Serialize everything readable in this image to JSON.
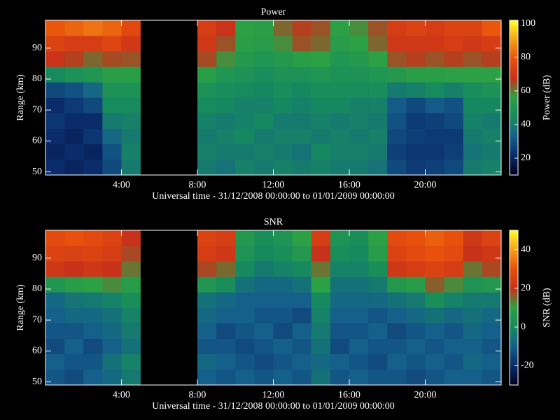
{
  "chart_data": [
    {
      "type": "heatmap",
      "title": "Power",
      "xlabel": "Universal time - 31/12/2008 00:00:00 to 01/01/2009 00:00:00",
      "ylabel": "Range (km)",
      "colorbar_label": "Power (dB)",
      "x": [
        0,
        1,
        2,
        3,
        4,
        5,
        6,
        7,
        8,
        9,
        10,
        11,
        12,
        13,
        14,
        15,
        16,
        17,
        18,
        19,
        20,
        21,
        22,
        23,
        24
      ],
      "y": [
        49,
        54,
        59,
        64,
        69,
        74,
        79,
        84,
        89,
        94,
        99
      ],
      "xlim": [
        0,
        24
      ],
      "ylim": [
        49,
        99
      ],
      "clim": [
        10,
        102
      ],
      "xticks": [
        {
          "value": 4,
          "label": "4:00"
        },
        {
          "value": 8,
          "label": "8:00"
        },
        {
          "value": 12,
          "label": "12:00"
        },
        {
          "value": 16,
          "label": "16:00"
        },
        {
          "value": 20,
          "label": "20:00"
        }
      ],
      "yticks": [
        50,
        60,
        70,
        80,
        90
      ],
      "cticks": [
        20,
        40,
        60,
        80,
        100
      ],
      "colormap": [
        "#00001e",
        "#0a2a6a",
        "#15608a",
        "#168a5e",
        "#2ca044",
        "#c8321a",
        "#e8500c",
        "#f4a01c",
        "#ffff28"
      ],
      "values": [
        [
          22,
          20,
          22,
          24,
          22,
          28,
          45,
          68,
          74,
          80
        ],
        [
          20,
          22,
          20,
          22,
          25,
          30,
          48,
          66,
          72,
          82
        ],
        [
          22,
          20,
          24,
          22,
          28,
          35,
          50,
          62,
          72,
          84
        ],
        [
          28,
          30,
          35,
          40,
          45,
          48,
          55,
          65,
          75,
          82
        ],
        [
          40,
          42,
          40,
          42,
          45,
          48,
          55,
          64,
          70,
          76
        ],
        [
          null,
          null,
          null,
          null,
          null,
          null,
          null,
          null,
          null,
          null
        ],
        [
          null,
          null,
          null,
          null,
          null,
          null,
          null,
          null,
          null,
          null
        ],
        [
          null,
          null,
          null,
          null,
          null,
          null,
          null,
          null,
          null,
          null
        ],
        [
          40,
          42,
          40,
          42,
          45,
          48,
          55,
          65,
          70,
          72
        ],
        [
          38,
          40,
          42,
          40,
          44,
          46,
          50,
          58,
          64,
          68
        ],
        [
          42,
          40,
          44,
          42,
          42,
          45,
          48,
          52,
          55,
          56
        ],
        [
          40,
          42,
          40,
          44,
          42,
          44,
          46,
          50,
          54,
          55
        ],
        [
          42,
          40,
          42,
          40,
          44,
          46,
          48,
          52,
          58,
          62
        ],
        [
          40,
          38,
          42,
          40,
          42,
          44,
          48,
          55,
          64,
          66
        ],
        [
          42,
          44,
          40,
          42,
          44,
          46,
          50,
          56,
          62,
          64
        ],
        [
          40,
          42,
          42,
          40,
          44,
          46,
          48,
          50,
          54,
          56
        ],
        [
          40,
          42,
          40,
          42,
          42,
          46,
          48,
          52,
          56,
          58
        ],
        [
          38,
          40,
          42,
          40,
          42,
          46,
          50,
          56,
          62,
          64
        ],
        [
          28,
          26,
          28,
          30,
          32,
          40,
          52,
          64,
          70,
          72
        ],
        [
          25,
          24,
          26,
          25,
          28,
          42,
          55,
          66,
          70,
          74
        ],
        [
          26,
          24,
          25,
          26,
          32,
          45,
          55,
          64,
          70,
          72
        ],
        [
          28,
          26,
          25,
          28,
          30,
          42,
          56,
          66,
          72,
          74
        ],
        [
          40,
          38,
          40,
          42,
          44,
          46,
          56,
          64,
          70,
          74
        ],
        [
          42,
          40,
          42,
          40,
          44,
          48,
          56,
          66,
          72,
          80
        ]
      ]
    },
    {
      "type": "heatmap",
      "title": "SNR",
      "xlabel": "Universal time - 31/12/2008 00:00:00 to 01/01/2009 00:00:00",
      "ylabel": "Range (km)",
      "colorbar_label": "SNR (dB)",
      "x": [
        0,
        1,
        2,
        3,
        4,
        5,
        6,
        7,
        8,
        9,
        10,
        11,
        12,
        13,
        14,
        15,
        16,
        17,
        18,
        19,
        20,
        21,
        22,
        23,
        24
      ],
      "y": [
        49,
        54,
        59,
        64,
        69,
        74,
        79,
        84,
        89,
        94,
        99
      ],
      "xlim": [
        0,
        24
      ],
      "ylim": [
        49,
        99
      ],
      "clim": [
        -30,
        50
      ],
      "xticks": [
        {
          "value": 4,
          "label": "4:00"
        },
        {
          "value": 8,
          "label": "8:00"
        },
        {
          "value": 12,
          "label": "12:00"
        },
        {
          "value": 16,
          "label": "16:00"
        },
        {
          "value": 20,
          "label": "20:00"
        }
      ],
      "yticks": [
        50,
        60,
        70,
        80,
        90
      ],
      "cticks": [
        -20,
        0,
        20,
        40
      ],
      "colormap": [
        "#00001e",
        "#0a2a6a",
        "#15608a",
        "#168a5e",
        "#2ca044",
        "#c8321a",
        "#e8500c",
        "#f4a01c",
        "#ffff28"
      ],
      "values": [
        [
          -12,
          -10,
          -14,
          -12,
          -10,
          -8,
          5,
          22,
          26,
          28
        ],
        [
          -14,
          -12,
          -10,
          -12,
          -8,
          -5,
          8,
          20,
          25,
          30
        ],
        [
          -10,
          -12,
          -14,
          -10,
          -8,
          -4,
          10,
          22,
          26,
          28
        ],
        [
          -8,
          -6,
          -10,
          -8,
          -6,
          -2,
          12,
          20,
          24,
          26
        ],
        [
          -4,
          -2,
          -6,
          -4,
          -2,
          2,
          8,
          14,
          18,
          20
        ],
        [
          null,
          null,
          null,
          null,
          null,
          null,
          null,
          null,
          null,
          null
        ],
        [
          null,
          null,
          null,
          null,
          null,
          null,
          null,
          null,
          null,
          null
        ],
        [
          null,
          null,
          null,
          null,
          null,
          null,
          null,
          null,
          null,
          null
        ],
        [
          -10,
          -8,
          -12,
          -10,
          -8,
          -6,
          5,
          18,
          24,
          26
        ],
        [
          -12,
          -10,
          -12,
          -14,
          -10,
          -8,
          2,
          15,
          22,
          24
        ],
        [
          -10,
          -12,
          -14,
          -12,
          -10,
          -10,
          -6,
          0,
          4,
          6
        ],
        [
          -12,
          -14,
          -12,
          -10,
          -12,
          -10,
          -8,
          -4,
          0,
          2
        ],
        [
          -10,
          -12,
          -10,
          -14,
          -12,
          -10,
          -8,
          -2,
          2,
          4
        ],
        [
          -12,
          -10,
          -12,
          -10,
          -14,
          -10,
          -6,
          0,
          6,
          10
        ],
        [
          -6,
          -8,
          -6,
          -4,
          -2,
          0,
          10,
          14,
          20,
          24
        ],
        [
          -12,
          -10,
          -14,
          -12,
          -10,
          -8,
          -6,
          -2,
          2,
          4
        ],
        [
          -10,
          -12,
          -10,
          -12,
          -10,
          -8,
          -6,
          -2,
          0,
          2
        ],
        [
          -12,
          -14,
          -12,
          -10,
          -12,
          -8,
          -4,
          2,
          8,
          10
        ],
        [
          -12,
          -10,
          -12,
          -14,
          -10,
          -6,
          6,
          22,
          26,
          28
        ],
        [
          -14,
          -12,
          -10,
          -12,
          -8,
          -4,
          8,
          24,
          28,
          30
        ],
        [
          -12,
          -10,
          -12,
          -10,
          -6,
          2,
          16,
          26,
          30,
          32
        ],
        [
          -10,
          -12,
          -10,
          -12,
          -8,
          -2,
          12,
          24,
          28,
          30
        ],
        [
          -10,
          -8,
          -10,
          -8,
          -6,
          -4,
          4,
          14,
          20,
          22
        ],
        [
          -12,
          -10,
          -12,
          -10,
          -8,
          -4,
          6,
          18,
          22,
          26
        ]
      ]
    }
  ]
}
